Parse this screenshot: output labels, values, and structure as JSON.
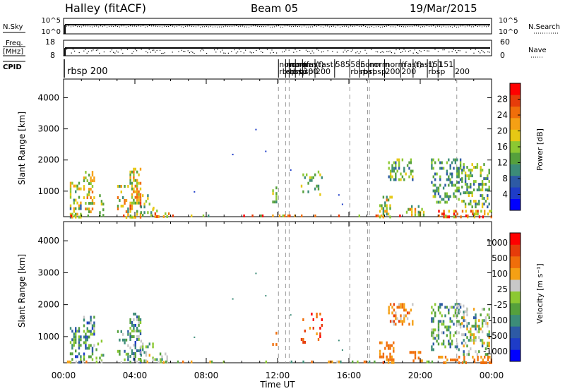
{
  "header": {
    "station": "Halley (fitACF)",
    "beam": "Beam 05",
    "date": "19/Mar/2015"
  },
  "nsky_panel": {
    "left_label": "N.Sky",
    "right_label": "N.Search",
    "left_ticks": [
      "10^5",
      "10^0"
    ],
    "right_ticks": [
      "10^5",
      "10^0"
    ]
  },
  "freq_panel": {
    "left_label_top": "Freq.",
    "left_label_bottom": "[MHz]",
    "right_label": "Nave",
    "left_ticks": [
      "18",
      "8"
    ],
    "right_ticks": [
      "60",
      "0"
    ]
  },
  "cpid_panel": {
    "label": "CPID",
    "mode_label": "rbsp 200",
    "change_labels": [
      {
        "t": 12.05,
        "top": "norm",
        "bottom": "rbsp"
      },
      {
        "t": 12.45,
        "top": "norm",
        "bottom": "rbsp"
      },
      {
        "t": 12.65,
        "top": "norm",
        "bottom": "rbsp"
      },
      {
        "t": 13.0,
        "top": "norm",
        "bottom": "rbsp"
      },
      {
        "t": 13.4,
        "top": "(fast)",
        "bottom": "200"
      },
      {
        "t": 14.1,
        "top": "(fast)",
        "bottom": "200"
      },
      {
        "t": 15.2,
        "top": "585",
        "bottom": ""
      },
      {
        "t": 16.05,
        "top": "585",
        "bottom": "rbsp"
      },
      {
        "t": 16.6,
        "top": "norm",
        "bottom": "rbsp"
      },
      {
        "t": 17.1,
        "top": "norm",
        "bottom": "rbsp"
      },
      {
        "t": 18.0,
        "top": "norm",
        "bottom": "200"
      },
      {
        "t": 18.9,
        "top": "(fast)",
        "bottom": "200"
      },
      {
        "t": 19.6,
        "top": "(fast)",
        "bottom": ""
      },
      {
        "t": 20.4,
        "top": "151",
        "bottom": "rbsp"
      },
      {
        "t": 21.0,
        "top": "151",
        "bottom": ""
      },
      {
        "t": 21.9,
        "top": "",
        "bottom": "200"
      }
    ]
  },
  "chart_data": [
    {
      "type": "heatmap",
      "name": "power",
      "title": "",
      "xlabel": "Time UT",
      "ylabel": "Slant Range [km]",
      "xlim": [
        0,
        24
      ],
      "ylim": [
        180,
        4600
      ],
      "x_ticks": [
        "00:00",
        "04:00",
        "08:00",
        "12:00",
        "16:00",
        "20:00",
        "00:00"
      ],
      "y_ticks": [
        1000,
        2000,
        3000,
        4000
      ],
      "colorbar": {
        "label": "Power [dB]",
        "range": [
          0,
          32
        ],
        "ticks": [
          4,
          8,
          12,
          16,
          20,
          24,
          28
        ],
        "colors": [
          "#0000ff",
          "#1e3cc8",
          "#2d5aa5",
          "#3c8c78",
          "#55a03c",
          "#8cc832",
          "#e6c814",
          "#f5a014",
          "#f06e0a",
          "#e63c0a",
          "#ff0000"
        ]
      },
      "dashed_times": [
        12.05,
        12.45,
        12.65,
        16.05,
        17.05,
        17.15,
        22.05
      ],
      "clusters": [
        {
          "t": [
            0.35,
            1.0
          ],
          "r": [
            200,
            1300
          ],
          "density": 0.45,
          "level": [
            0.25,
            0.7
          ]
        },
        {
          "t": [
            1.1,
            1.7
          ],
          "r": [
            300,
            1650
          ],
          "density": 0.35,
          "level": [
            0.35,
            0.75
          ]
        },
        {
          "t": [
            1.8,
            2.2
          ],
          "r": [
            200,
            900
          ],
          "density": 0.2,
          "level": [
            0.3,
            0.6
          ]
        },
        {
          "t": [
            3.0,
            3.6
          ],
          "r": [
            200,
            1200
          ],
          "density": 0.3,
          "level": [
            0.3,
            0.8
          ]
        },
        {
          "t": [
            3.7,
            4.3
          ],
          "r": [
            200,
            1750
          ],
          "density": 0.45,
          "level": [
            0.35,
            0.85
          ]
        },
        {
          "t": [
            4.3,
            5.0
          ],
          "r": [
            200,
            900
          ],
          "density": 0.25,
          "level": [
            0.3,
            0.7
          ]
        },
        {
          "t": [
            5.0,
            6.0
          ],
          "r": [
            200,
            500
          ],
          "density": 0.25,
          "level": [
            0.4,
            0.9
          ]
        },
        {
          "t": [
            11.7,
            11.9
          ],
          "r": [
            650,
            1150
          ],
          "density": 0.35,
          "level": [
            0.3,
            0.6
          ]
        },
        {
          "t": [
            13.3,
            14.5
          ],
          "r": [
            850,
            1750
          ],
          "density": 0.15,
          "level": [
            0.3,
            0.6
          ]
        },
        {
          "t": [
            17.7,
            18.5
          ],
          "r": [
            200,
            850
          ],
          "density": 0.4,
          "level": [
            0.3,
            0.75
          ]
        },
        {
          "t": [
            18.2,
            19.6
          ],
          "r": [
            1350,
            2050
          ],
          "density": 0.45,
          "level": [
            0.2,
            0.6
          ]
        },
        {
          "t": [
            19.2,
            20.2
          ],
          "r": [
            200,
            550
          ],
          "density": 0.35,
          "level": [
            0.3,
            0.8
          ]
        },
        {
          "t": [
            20.6,
            22.3
          ],
          "r": [
            600,
            2050
          ],
          "density": 0.35,
          "level": [
            0.2,
            0.55
          ]
        },
        {
          "t": [
            22.3,
            23.9
          ],
          "r": [
            450,
            1900
          ],
          "density": 0.35,
          "level": [
            0.2,
            0.6
          ]
        },
        {
          "t": [
            21.0,
            24.0
          ],
          "r": [
            200,
            400
          ],
          "density": 0.4,
          "level": [
            0.5,
            1.0
          ]
        },
        {
          "t": [
            0.0,
            24.0
          ],
          "r": [
            200,
            250
          ],
          "density": 0.15,
          "level": [
            0.3,
            1.0
          ]
        }
      ],
      "isolated": [
        {
          "t": 10.75,
          "r": 3000
        },
        {
          "t": 9.45,
          "r": 2200
        },
        {
          "t": 11.3,
          "r": 2300
        },
        {
          "t": 12.7,
          "r": 1700
        },
        {
          "t": 7.3,
          "r": 1000
        },
        {
          "t": 15.4,
          "r": 900
        },
        {
          "t": 15.6,
          "r": 600
        }
      ]
    },
    {
      "type": "heatmap",
      "name": "velocity",
      "title": "",
      "xlabel": "Time UT",
      "ylabel": "Slant Range [km]",
      "xlim": [
        0,
        24
      ],
      "ylim": [
        180,
        4600
      ],
      "x_ticks": [
        "00:00",
        "04:00",
        "08:00",
        "12:00",
        "16:00",
        "20:00",
        "00:00"
      ],
      "y_ticks": [
        1000,
        2000,
        3000,
        4000
      ],
      "colorbar": {
        "label": "Velocity [m s⁻¹]",
        "ticks": [
          "1000",
          "500",
          "100",
          "25",
          "-25",
          "-100",
          "-500",
          "-1000"
        ],
        "colors": [
          "#0000ff",
          "#1e3cc8",
          "#2d5aa5",
          "#3c8c78",
          "#55a03c",
          "#8cc832",
          "#c8c8c8",
          "#f5a014",
          "#f06e0a",
          "#e63c0a",
          "#ff0000"
        ]
      },
      "dashed_times": [
        12.05,
        12.45,
        12.65,
        16.05,
        17.05,
        17.15,
        22.05
      ],
      "clusters": [
        {
          "t": [
            0.35,
            1.0
          ],
          "r": [
            200,
            1300
          ],
          "density": 0.45,
          "level": [
            0.15,
            0.55
          ]
        },
        {
          "t": [
            1.1,
            1.7
          ],
          "r": [
            300,
            1650
          ],
          "density": 0.35,
          "level": [
            0.15,
            0.6
          ]
        },
        {
          "t": [
            1.8,
            2.2
          ],
          "r": [
            200,
            900
          ],
          "density": 0.2,
          "level": [
            0.3,
            0.6
          ]
        },
        {
          "t": [
            3.0,
            3.6
          ],
          "r": [
            200,
            1200
          ],
          "density": 0.3,
          "level": [
            0.2,
            0.6
          ]
        },
        {
          "t": [
            3.7,
            4.3
          ],
          "r": [
            200,
            1750
          ],
          "density": 0.45,
          "level": [
            0.15,
            0.6
          ]
        },
        {
          "t": [
            4.3,
            5.0
          ],
          "r": [
            200,
            900
          ],
          "density": 0.25,
          "level": [
            0.3,
            0.65
          ]
        },
        {
          "t": [
            5.0,
            6.0
          ],
          "r": [
            200,
            500
          ],
          "density": 0.25,
          "level": [
            0.3,
            0.7
          ]
        },
        {
          "t": [
            11.7,
            11.9
          ],
          "r": [
            650,
            1150
          ],
          "density": 0.35,
          "level": [
            0.72,
            0.82
          ]
        },
        {
          "t": [
            13.3,
            14.5
          ],
          "r": [
            850,
            1750
          ],
          "density": 0.15,
          "level": [
            0.7,
            1.0
          ]
        },
        {
          "t": [
            17.7,
            18.5
          ],
          "r": [
            200,
            850
          ],
          "density": 0.4,
          "level": [
            0.7,
            0.82
          ]
        },
        {
          "t": [
            18.2,
            19.6
          ],
          "r": [
            1350,
            2050
          ],
          "density": 0.45,
          "level": [
            0.6,
            0.85
          ]
        },
        {
          "t": [
            19.2,
            20.2
          ],
          "r": [
            200,
            550
          ],
          "density": 0.35,
          "level": [
            0.7,
            0.8
          ]
        },
        {
          "t": [
            20.6,
            22.3
          ],
          "r": [
            600,
            2050
          ],
          "density": 0.35,
          "level": [
            0.2,
            0.6
          ]
        },
        {
          "t": [
            22.3,
            23.9
          ],
          "r": [
            450,
            1900
          ],
          "density": 0.35,
          "level": [
            0.2,
            0.7
          ]
        },
        {
          "t": [
            22.0,
            22.8
          ],
          "r": [
            1800,
            2000
          ],
          "density": 0.4,
          "level": [
            0.6,
            0.64
          ]
        },
        {
          "t": [
            21.0,
            24.0
          ],
          "r": [
            200,
            400
          ],
          "density": 0.4,
          "level": [
            0.7,
            0.8
          ]
        },
        {
          "t": [
            0.0,
            24.0
          ],
          "r": [
            200,
            250
          ],
          "density": 0.15,
          "level": [
            0.3,
            0.8
          ]
        }
      ],
      "isolated": [
        {
          "t": 10.75,
          "r": 3000
        },
        {
          "t": 9.45,
          "r": 2200
        },
        {
          "t": 11.3,
          "r": 2300
        },
        {
          "t": 12.7,
          "r": 1700
        },
        {
          "t": 7.3,
          "r": 1000
        },
        {
          "t": 15.4,
          "r": 900
        },
        {
          "t": 15.6,
          "r": 600
        }
      ]
    }
  ]
}
